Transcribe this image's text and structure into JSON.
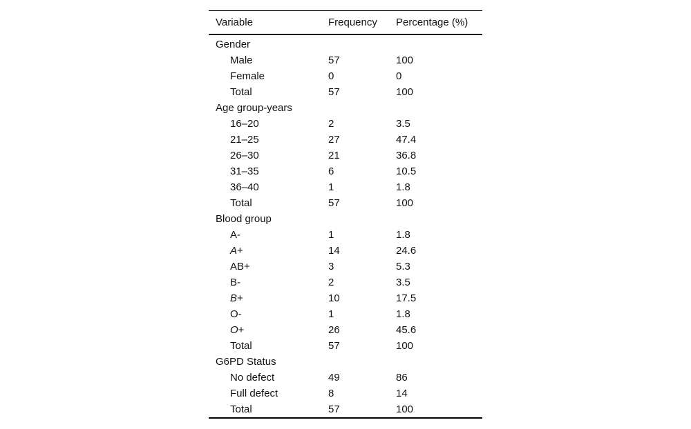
{
  "table": {
    "columns": [
      "Variable",
      "Frequency",
      "Percentage (%)"
    ],
    "rows": [
      {
        "type": "section",
        "label": [
          {
            "text": "Gender",
            "italic": false
          }
        ],
        "frequency": "",
        "percentage": ""
      },
      {
        "type": "item",
        "label": [
          {
            "text": "Male",
            "italic": false
          }
        ],
        "frequency": "57",
        "percentage": "100"
      },
      {
        "type": "item",
        "label": [
          {
            "text": "Female",
            "italic": false
          }
        ],
        "frequency": "0",
        "percentage": "0"
      },
      {
        "type": "item",
        "label": [
          {
            "text": "Total",
            "italic": false
          }
        ],
        "frequency": "57",
        "percentage": "100"
      },
      {
        "type": "section",
        "label": [
          {
            "text": "Age group-years",
            "italic": false
          }
        ],
        "frequency": "",
        "percentage": ""
      },
      {
        "type": "item",
        "label": [
          {
            "text": "16–20",
            "italic": false
          }
        ],
        "frequency": "2",
        "percentage": "3.5"
      },
      {
        "type": "item",
        "label": [
          {
            "text": "21–25",
            "italic": false
          }
        ],
        "frequency": "27",
        "percentage": "47.4"
      },
      {
        "type": "item",
        "label": [
          {
            "text": "26–30",
            "italic": false
          }
        ],
        "frequency": "21",
        "percentage": "36.8"
      },
      {
        "type": "item",
        "label": [
          {
            "text": "31–35",
            "italic": false
          }
        ],
        "frequency": "6",
        "percentage": "10.5"
      },
      {
        "type": "item",
        "label": [
          {
            "text": "36–40",
            "italic": false
          }
        ],
        "frequency": "1",
        "percentage": "1.8"
      },
      {
        "type": "item",
        "label": [
          {
            "text": "Total",
            "italic": false
          }
        ],
        "frequency": "57",
        "percentage": "100"
      },
      {
        "type": "section",
        "label": [
          {
            "text": "Blood group",
            "italic": false
          }
        ],
        "frequency": "",
        "percentage": ""
      },
      {
        "type": "item",
        "label": [
          {
            "text": "A-",
            "italic": false
          }
        ],
        "frequency": "1",
        "percentage": "1.8"
      },
      {
        "type": "item",
        "label": [
          {
            "text": "A",
            "italic": true
          },
          {
            "text": "+",
            "italic": false
          }
        ],
        "frequency": "14",
        "percentage": "24.6"
      },
      {
        "type": "item",
        "label": [
          {
            "text": "AB+",
            "italic": false
          }
        ],
        "frequency": "3",
        "percentage": "5.3"
      },
      {
        "type": "item",
        "label": [
          {
            "text": "B-",
            "italic": false
          }
        ],
        "frequency": "2",
        "percentage": "3.5"
      },
      {
        "type": "item",
        "label": [
          {
            "text": "B",
            "italic": true
          },
          {
            "text": "+",
            "italic": false
          }
        ],
        "frequency": "10",
        "percentage": "17.5"
      },
      {
        "type": "item",
        "label": [
          {
            "text": "O-",
            "italic": false
          }
        ],
        "frequency": "1",
        "percentage": "1.8"
      },
      {
        "type": "item",
        "label": [
          {
            "text": "O",
            "italic": true
          },
          {
            "text": "+",
            "italic": false
          }
        ],
        "frequency": "26",
        "percentage": "45.6"
      },
      {
        "type": "item",
        "label": [
          {
            "text": "Total",
            "italic": false
          }
        ],
        "frequency": "57",
        "percentage": "100"
      },
      {
        "type": "section",
        "label": [
          {
            "text": "G6PD Status",
            "italic": false
          }
        ],
        "frequency": "",
        "percentage": ""
      },
      {
        "type": "item",
        "label": [
          {
            "text": "No defect",
            "italic": false
          }
        ],
        "frequency": "49",
        "percentage": "86"
      },
      {
        "type": "item",
        "label": [
          {
            "text": "Full defect",
            "italic": false
          }
        ],
        "frequency": "8",
        "percentage": "14"
      },
      {
        "type": "item",
        "label": [
          {
            "text": "Total",
            "italic": false
          }
        ],
        "frequency": "57",
        "percentage": "100"
      }
    ]
  }
}
